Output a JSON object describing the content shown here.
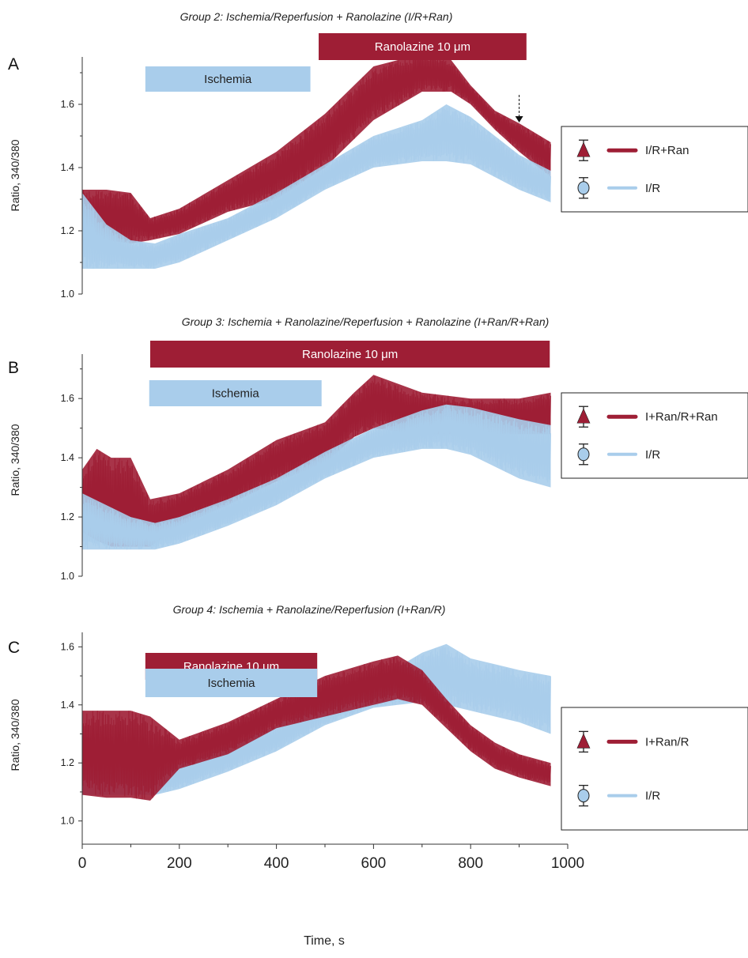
{
  "colors": {
    "ran": "#9e1e35",
    "ir": "#a9cdeb",
    "axis": "#333333"
  },
  "x_axis": {
    "label": "Time, s",
    "range": [
      0,
      1000
    ],
    "ticks": [
      "0",
      "200",
      "400",
      "600",
      "800",
      "1000"
    ]
  },
  "chart_data": [
    {
      "panel": "A",
      "type": "line",
      "title": "Group 2: Ischemia/Reperfusion + Ranolazine (I/R+Ran)",
      "ylabel": "Ratio, 340/380",
      "ylim": [
        1.0,
        1.75
      ],
      "yticks": [
        "1.0",
        "1.2",
        "1.4",
        "1.6"
      ],
      "xlim": [
        0,
        1000
      ],
      "bars": [
        {
          "label": "Ischemia",
          "start": 130,
          "end": 470,
          "color": "#a9cdeb"
        },
        {
          "label": "Ranolazine 10 μm",
          "start": 487,
          "end": 915,
          "color": "#9e1e35"
        }
      ],
      "arrow_at": 900,
      "legend": [
        "I/R+Ran",
        "I/R"
      ],
      "series": [
        {
          "name": "I/R+Ran",
          "color": "#9e1e35",
          "x": [
            0,
            50,
            100,
            140,
            200,
            300,
            400,
            500,
            600,
            700,
            760,
            800,
            850,
            900,
            965
          ],
          "low": [
            1.17,
            1.17,
            1.16,
            1.17,
            1.19,
            1.26,
            1.3,
            1.4,
            1.55,
            1.64,
            1.64,
            1.6,
            1.52,
            1.45,
            1.37
          ],
          "high": [
            1.33,
            1.33,
            1.32,
            1.24,
            1.27,
            1.36,
            1.45,
            1.57,
            1.72,
            1.76,
            1.74,
            1.66,
            1.58,
            1.54,
            1.48
          ]
        },
        {
          "name": "I/R",
          "color": "#a9cdeb",
          "x": [
            0,
            50,
            100,
            150,
            200,
            300,
            400,
            500,
            600,
            700,
            750,
            800,
            850,
            900,
            965
          ],
          "low": [
            1.08,
            1.08,
            1.08,
            1.08,
            1.1,
            1.17,
            1.24,
            1.33,
            1.4,
            1.42,
            1.42,
            1.41,
            1.37,
            1.33,
            1.29
          ],
          "high": [
            1.32,
            1.22,
            1.17,
            1.16,
            1.19,
            1.24,
            1.32,
            1.41,
            1.5,
            1.55,
            1.6,
            1.56,
            1.5,
            1.44,
            1.39
          ]
        }
      ]
    },
    {
      "panel": "B",
      "type": "line",
      "title": "Group 3: Ischemia + Ranolazine/Reperfusion + Ranolazine (I+Ran/R+Ran)",
      "ylabel": "Ratio, 340/380",
      "ylim": [
        1.0,
        1.75
      ],
      "yticks": [
        "1.0",
        "1.2",
        "1.4",
        "1.6"
      ],
      "xlim": [
        0,
        1000
      ],
      "bars": [
        {
          "label": "Ranolazine 10 μm",
          "start": 140,
          "end": 963,
          "color": "#9e1e35"
        },
        {
          "label": "Ischemia",
          "start": 138,
          "end": 493,
          "color": "#a9cdeb"
        }
      ],
      "legend": [
        "I+Ran/R+Ran",
        "I/R"
      ],
      "series": [
        {
          "name": "I+Ran/R+Ran",
          "color": "#9e1e35",
          "x": [
            0,
            30,
            60,
            100,
            140,
            200,
            300,
            400,
            500,
            560,
            600,
            700,
            800,
            900,
            965
          ],
          "low": [
            1.15,
            1.12,
            1.1,
            1.1,
            1.1,
            1.17,
            1.24,
            1.32,
            1.38,
            1.47,
            1.5,
            1.48,
            1.48,
            1.48,
            1.48
          ],
          "high": [
            1.36,
            1.43,
            1.4,
            1.4,
            1.26,
            1.28,
            1.36,
            1.46,
            1.52,
            1.62,
            1.68,
            1.62,
            1.6,
            1.6,
            1.62
          ]
        },
        {
          "name": "I/R",
          "color": "#a9cdeb",
          "x": [
            0,
            100,
            150,
            200,
            300,
            400,
            500,
            600,
            700,
            750,
            800,
            850,
            900,
            965
          ],
          "low": [
            1.09,
            1.09,
            1.09,
            1.11,
            1.17,
            1.24,
            1.33,
            1.4,
            1.43,
            1.43,
            1.41,
            1.37,
            1.33,
            1.3
          ],
          "high": [
            1.28,
            1.2,
            1.18,
            1.2,
            1.26,
            1.33,
            1.42,
            1.5,
            1.56,
            1.58,
            1.57,
            1.55,
            1.53,
            1.51
          ]
        }
      ]
    },
    {
      "panel": "C",
      "type": "line",
      "title": "Group 4: Ischemia + Ranolazine/Reperfusion (I+Ran/R)",
      "ylabel": "Ratio, 340/380",
      "ylim": [
        0.92,
        1.65
      ],
      "yticks": [
        "1.0",
        "1.2",
        "1.4",
        "1.6"
      ],
      "xlim": [
        0,
        1000
      ],
      "bars": [
        {
          "label": "Ranolazine 10 μm",
          "start": 130,
          "end": 484,
          "color": "#9e1e35"
        },
        {
          "label": "Ischemia",
          "start": 130,
          "end": 484,
          "color": "#a9cdeb"
        }
      ],
      "legend": [
        "I+Ran/R",
        "I/R"
      ],
      "series": [
        {
          "name": "I/R",
          "color": "#a9cdeb",
          "x": [
            0,
            100,
            150,
            200,
            300,
            400,
            500,
            600,
            650,
            700,
            750,
            800,
            900,
            965
          ],
          "low": [
            1.09,
            1.09,
            1.09,
            1.11,
            1.17,
            1.24,
            1.33,
            1.39,
            1.4,
            1.41,
            1.4,
            1.38,
            1.34,
            1.3
          ],
          "high": [
            1.3,
            1.22,
            1.18,
            1.2,
            1.26,
            1.33,
            1.42,
            1.49,
            1.53,
            1.58,
            1.61,
            1.56,
            1.52,
            1.5
          ]
        },
        {
          "name": "I+Ran/R",
          "color": "#9e1e35",
          "x": [
            0,
            50,
            100,
            140,
            200,
            300,
            400,
            500,
            600,
            650,
            700,
            750,
            800,
            850,
            900,
            965
          ],
          "low": [
            1.09,
            1.08,
            1.08,
            1.07,
            1.18,
            1.23,
            1.32,
            1.36,
            1.4,
            1.42,
            1.4,
            1.32,
            1.24,
            1.18,
            1.15,
            1.12
          ],
          "high": [
            1.38,
            1.38,
            1.38,
            1.36,
            1.28,
            1.34,
            1.42,
            1.5,
            1.55,
            1.57,
            1.52,
            1.42,
            1.33,
            1.27,
            1.23,
            1.2
          ]
        }
      ]
    }
  ]
}
